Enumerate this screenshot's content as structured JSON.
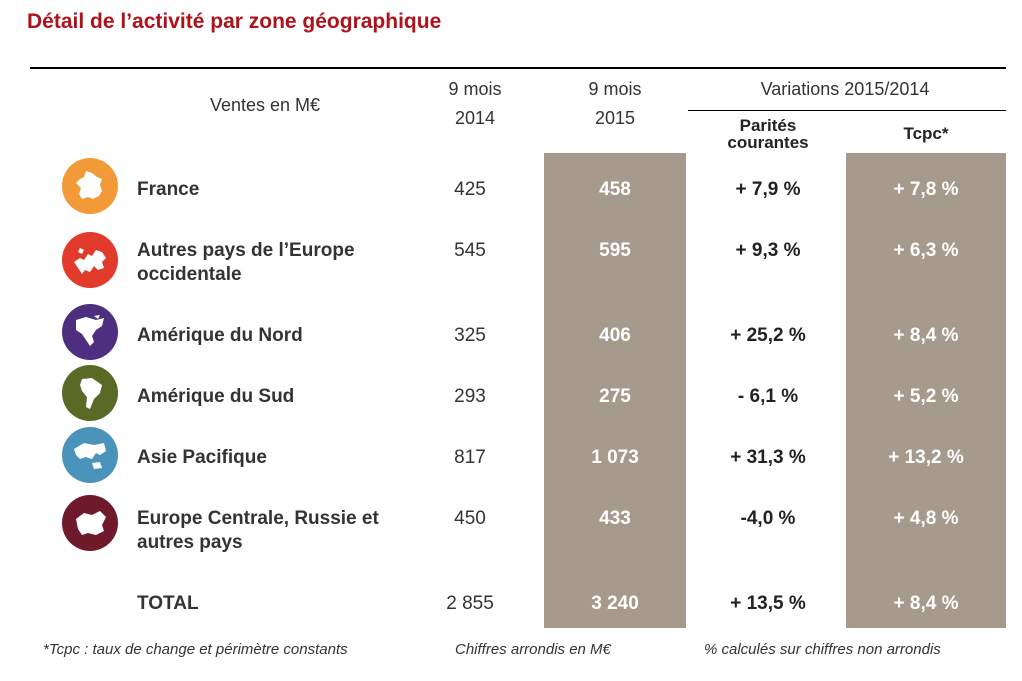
{
  "title": "Détail de l’activité par zone géographique",
  "header": {
    "ventes": "Ventes en M€",
    "col2014_line1": "9 mois",
    "col2014_line2": "2014",
    "col2015_line1": "9 mois",
    "col2015_line2": "2015",
    "variations": "Variations 2015/2014",
    "parites_line1": "Parités",
    "parites_line2": "courantes",
    "tcpc": "Tcpc*"
  },
  "rows": [
    {
      "zone": "France",
      "v2014": "425",
      "v2015": "458",
      "pc": "+ 7,9 %",
      "tcpc": "+ 7,8 %",
      "icon": "france-map-icon",
      "color": "#f29a38"
    },
    {
      "zone": "Autres pays de l’Europe occidentale",
      "v2014": "545",
      "v2015": "595",
      "pc": "+ 9,3 %",
      "tcpc": "+ 6,3 %",
      "icon": "western-europe-map-icon",
      "color": "#e23a2b"
    },
    {
      "zone": "Amérique du Nord",
      "v2014": "325",
      "v2015": "406",
      "pc": "+ 25,2 %",
      "tcpc": "+ 8,4 %",
      "icon": "north-america-map-icon",
      "color": "#4e2e7e"
    },
    {
      "zone": "Amérique du Sud",
      "v2014": "293",
      "v2015": "275",
      "pc": "- 6,1 %",
      "tcpc": "+ 5,2 %",
      "icon": "south-america-map-icon",
      "color": "#5a6a26"
    },
    {
      "zone": "Asie Pacifique",
      "v2014": "817",
      "v2015": "1 073",
      "pc": "+ 31,3 %",
      "tcpc": "+ 13,2 %",
      "icon": "asia-pacific-map-icon",
      "color": "#4a93ba"
    },
    {
      "zone": "Europe Centrale, Russie et autres pays",
      "v2014": "450",
      "v2015": "433",
      "pc": "-4,0 %",
      "tcpc": "+ 4,8 %",
      "icon": "central-europe-map-icon",
      "color": "#6f1a2b"
    }
  ],
  "total": {
    "zone": "TOTAL",
    "v2014": "2 855",
    "v2015": "3 240",
    "pc": "+ 13,5 %",
    "tcpc": "+ 8,4 %"
  },
  "footnotes": {
    "tcpc": "*Tcpc : taux de change et périmètre constants",
    "rounded": "Chiffres arrondis en M€",
    "percent": "% calculés sur chiffres non arrondis"
  },
  "colors": {
    "title": "#b0121b",
    "shade": "#a59a8c"
  }
}
